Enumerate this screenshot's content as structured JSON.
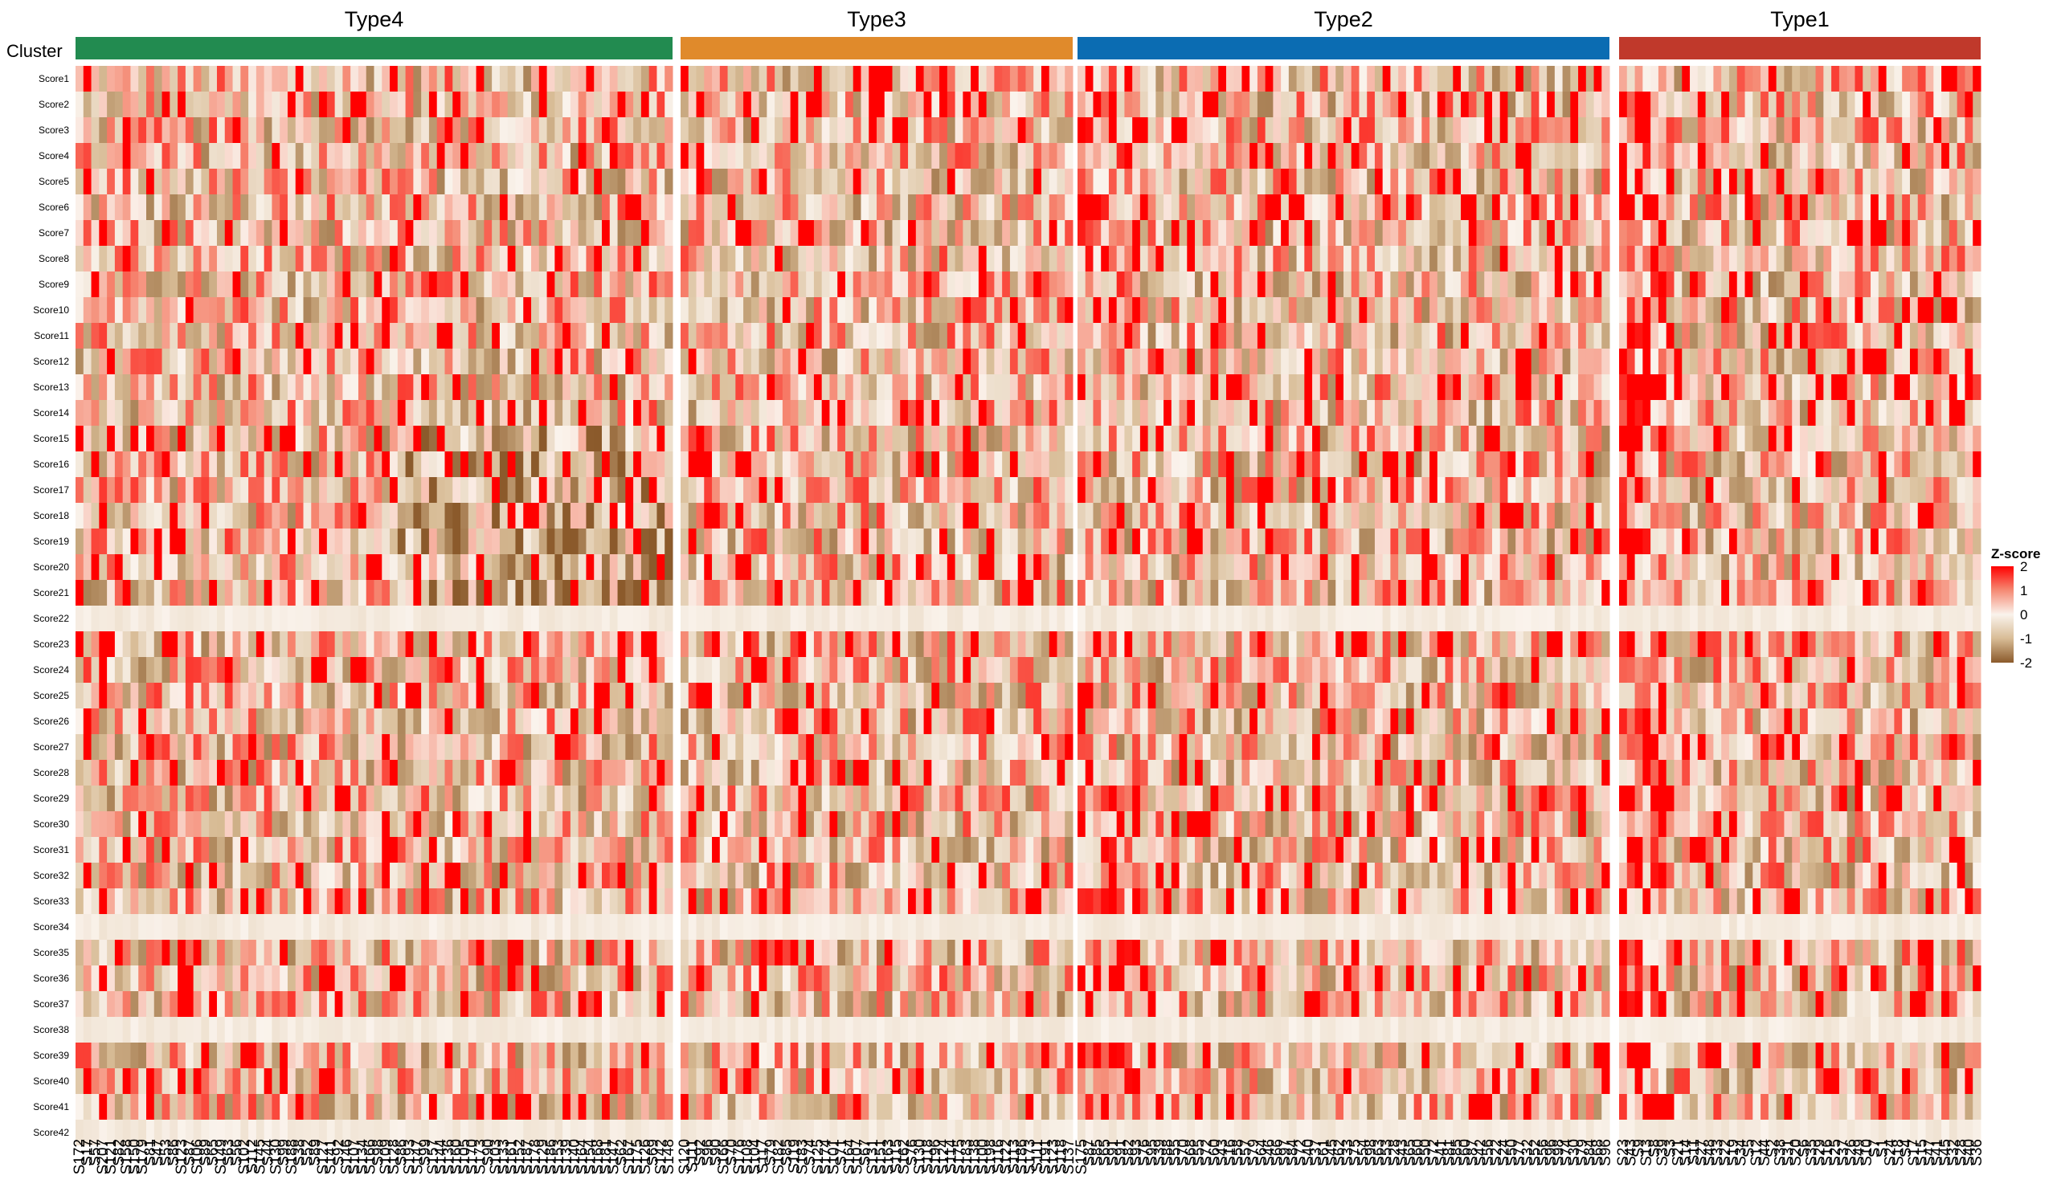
{
  "chart_data": {
    "type": "heatmap",
    "annotation_label": "Cluster",
    "groups": [
      {
        "name": "Type4",
        "color": "#228B50",
        "n_samples": 76
      },
      {
        "name": "Type3",
        "color": "#E08A2B",
        "n_samples": 50
      },
      {
        "name": "Type2",
        "color": "#0B6CB2",
        "n_samples": 68
      },
      {
        "name": "Type1",
        "color": "#C0392B",
        "n_samples": 46
      }
    ],
    "rows": [
      "Score1",
      "Score2",
      "Score3",
      "Score4",
      "Score5",
      "Score6",
      "Score7",
      "Score8",
      "Score9",
      "Score10",
      "Score11",
      "Score12",
      "Score13",
      "Score14",
      "Score15",
      "Score16",
      "Score17",
      "Score18",
      "Score19",
      "Score20",
      "Score21",
      "Score22",
      "Score23",
      "Score24",
      "Score25",
      "Score26",
      "Score27",
      "Score28",
      "Score29",
      "Score30",
      "Score31",
      "Score32",
      "Score33",
      "Score34",
      "Score35",
      "Score36",
      "Score37",
      "Score38",
      "Score39",
      "Score40",
      "Score41",
      "Score42"
    ],
    "legend": {
      "title": "Z-score",
      "ticks": [
        "2",
        "1",
        "0",
        "-1",
        "-2"
      ],
      "range": [
        -2,
        2
      ],
      "colors": {
        "low": "#8B5A2B",
        "mid_low": "#D8BC96",
        "mid": "#FAF3EC",
        "mid_high": "#F58A74",
        "high": "#FF0000"
      }
    },
    "column_labels": {
      "Type4": [
        "S172",
        "S17",
        "S57",
        "S207",
        "S121",
        "S82",
        "S158",
        "S150",
        "S179",
        "S81",
        "S47",
        "S53",
        "S86",
        "S123",
        "S87",
        "S106",
        "S89",
        "S65",
        "S149",
        "S63",
        "S56",
        "S102",
        "S112",
        "S145",
        "S44",
        "S130",
        "S99",
        "S188",
        "S38",
        "S52",
        "S89",
        "S127",
        "S141",
        "S92",
        "S146",
        "S107",
        "S134",
        "S166",
        "S98",
        "S109",
        "S128",
        "S86",
        "S193",
        "S147",
        "S99",
        "S157",
        "S144",
        "S136",
        "S160",
        "S105",
        "S170",
        "S173",
        "S90",
        "S103",
        "S133",
        "S161",
        "S152",
        "S187",
        "S178",
        "S129",
        "S186",
        "S153",
        "S139",
        "S140",
        "S164",
        "S154",
        "S168",
        "S181",
        "S147",
        "S62",
        "S167",
        "S175",
        "S126",
        "S69",
        "S142",
        "S148"
      ],
      "Type3": [
        "S120",
        "S111",
        "S92",
        "S96",
        "S90",
        "S166",
        "S70",
        "S176",
        "S108",
        "S104",
        "S117",
        "S79",
        "S182",
        "S85",
        "S119",
        "S183",
        "S74",
        "S125",
        "S174",
        "S101",
        "S71",
        "S164",
        "S107",
        "S67",
        "S131",
        "S151",
        "S163",
        "S115",
        "S162",
        "S76",
        "S130",
        "S118",
        "S196",
        "S124",
        "S114",
        "S175",
        "S183",
        "S138",
        "S100",
        "S198",
        "S116",
        "S122",
        "S113",
        "S186",
        "S173",
        "S111",
        "S191",
        "S123",
        "S118",
        "S137"
      ],
      "Type2": [
        "S175",
        "S87",
        "S85",
        "S65",
        "S91",
        "S91",
        "S82",
        "S93",
        "S76",
        "S95",
        "S39",
        "S88",
        "S55",
        "S70",
        "S68",
        "S55",
        "S72",
        "S60",
        "S43",
        "S16",
        "S58",
        "S57",
        "S79",
        "S64",
        "S46",
        "S66",
        "S97",
        "S84",
        "S72",
        "S40",
        "S37",
        "S61",
        "S45",
        "S62",
        "S33",
        "S75",
        "S54",
        "S98",
        "S63",
        "S53",
        "S28",
        "S43",
        "S65",
        "S60",
        "S50",
        "S72",
        "S41",
        "S81",
        "S85",
        "S60",
        "S87",
        "S42",
        "S56",
        "S22",
        "S24",
        "S50",
        "S77",
        "S32",
        "S52",
        "S56",
        "S96",
        "S98",
        "S74",
        "S30",
        "S79",
        "S84",
        "S68",
        "S96"
      ],
      "Type1": [
        "S23",
        "S43",
        "S9",
        "S13",
        "S8",
        "S39",
        "S3",
        "S21",
        "S14",
        "S11",
        "S27",
        "S48",
        "S33",
        "S22",
        "S19",
        "S34",
        "S5",
        "S12",
        "S44",
        "S2",
        "S38",
        "S31",
        "S20",
        "S6",
        "S35",
        "S29",
        "S16",
        "S25",
        "S37",
        "S26",
        "S49",
        "S10",
        "S7",
        "S1",
        "S24",
        "S18",
        "S4",
        "S17",
        "S15",
        "S47",
        "S41",
        "S45",
        "S32",
        "S28",
        "S40",
        "S36"
      ]
    }
  }
}
